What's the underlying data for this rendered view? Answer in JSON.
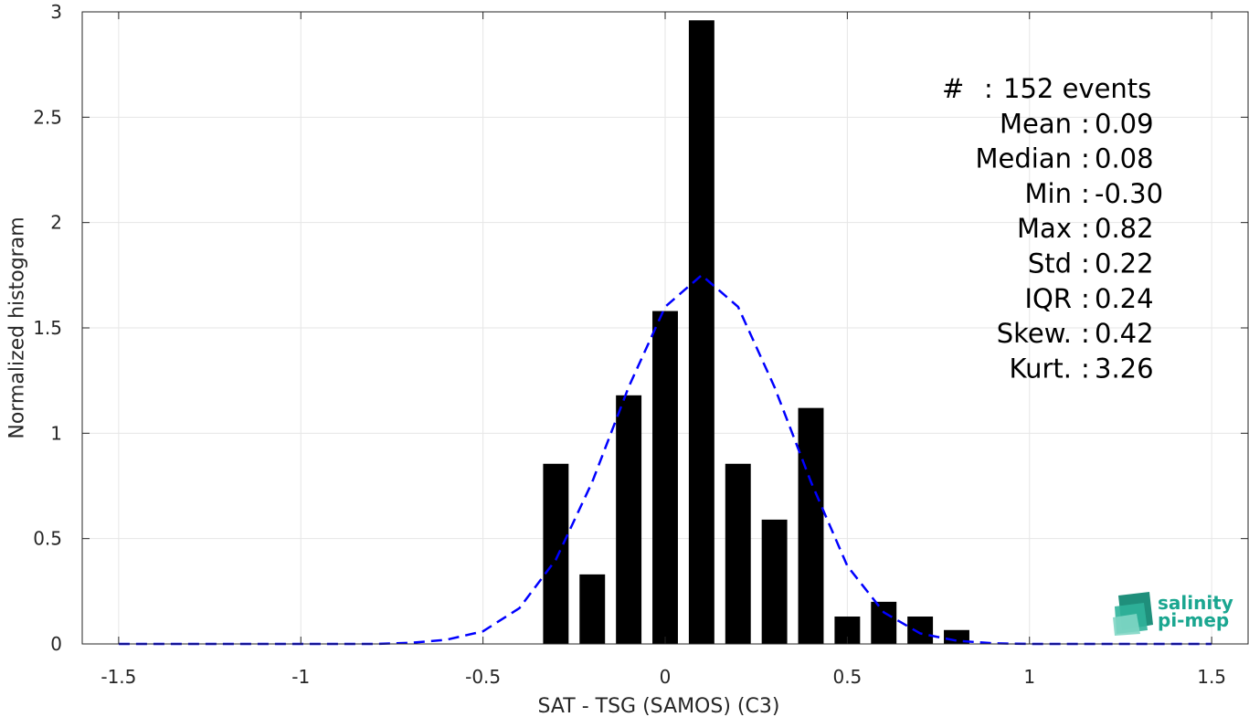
{
  "chart_data": {
    "type": "bar",
    "xlabel": "SAT - TSG (SAMOS) (C3)",
    "ylabel": "Normalized histogram",
    "xlim": [
      -1.6,
      1.6
    ],
    "ylim": [
      0,
      3
    ],
    "xticks": [
      "-1.5",
      "-1",
      "-0.5",
      "0",
      "0.5",
      "1",
      "1.5"
    ],
    "yticks": [
      "0",
      "0.5",
      "1",
      "1.5",
      "2",
      "2.5",
      "3"
    ],
    "grid": true,
    "bars": {
      "color": "#000000",
      "x": [
        -0.3,
        -0.2,
        -0.1,
        0.0,
        0.1,
        0.2,
        0.3,
        0.4,
        0.5,
        0.6,
        0.7,
        0.8
      ],
      "values": [
        0.855,
        0.33,
        1.18,
        1.58,
        2.96,
        0.855,
        0.59,
        1.12,
        0.13,
        0.2,
        0.13,
        0.066
      ]
    },
    "fit_curve": {
      "color": "#0000ff",
      "style": "dashed",
      "x": [
        -1.5,
        -1.4,
        -1.3,
        -1.2,
        -1.1,
        -1.0,
        -0.9,
        -0.8,
        -0.7,
        -0.6,
        -0.5,
        -0.4,
        -0.3,
        -0.2,
        -0.1,
        0.0,
        0.1,
        0.2,
        0.3,
        0.4,
        0.5,
        0.6,
        0.7,
        0.8,
        0.9,
        1.0,
        1.1,
        1.2,
        1.3,
        1.4,
        1.5
      ],
      "y": [
        0,
        0,
        0,
        0,
        0,
        0,
        0,
        0,
        0.005,
        0.02,
        0.06,
        0.17,
        0.4,
        0.77,
        1.22,
        1.6,
        1.75,
        1.6,
        1.22,
        0.77,
        0.37,
        0.15,
        0.05,
        0.015,
        0.003,
        0,
        0,
        0,
        0,
        0,
        0
      ]
    },
    "stats": [
      {
        "label": "#",
        "sep": ":",
        "value": "152 events"
      },
      {
        "label": "Mean",
        "sep": ":",
        "value": "0.09"
      },
      {
        "label": "Median",
        "sep": ":",
        "value": "0.08"
      },
      {
        "label": "Min",
        "sep": ":",
        "value": "-0.30"
      },
      {
        "label": "Max",
        "sep": ":",
        "value": "0.82"
      },
      {
        "label": "Std",
        "sep": ":",
        "value": "0.22"
      },
      {
        "label": "IQR",
        "sep": ":",
        "value": "0.24"
      },
      {
        "label": "Skew.",
        "sep": ":",
        "value": "0.42"
      },
      {
        "label": "Kurt.",
        "sep": ":",
        "value": "3.26"
      }
    ]
  },
  "logo": {
    "line1": "salinity",
    "line2": "pi-mep",
    "color": "#1aa690"
  }
}
